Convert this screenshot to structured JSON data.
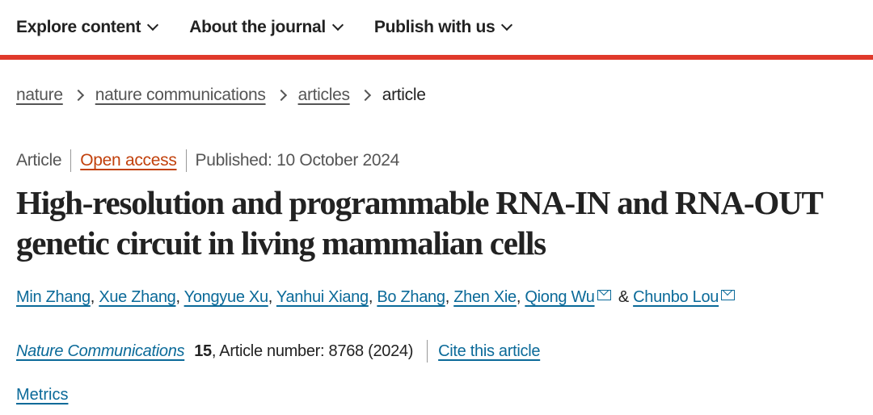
{
  "nav": {
    "items": [
      {
        "label": "Explore content"
      },
      {
        "label": "About the journal"
      },
      {
        "label": "Publish with us"
      }
    ]
  },
  "colors": {
    "accent_bar": "#e0392b",
    "link": "#0b6a99",
    "open_access": "#c2410c"
  },
  "breadcrumb": {
    "items": [
      "nature",
      "nature communications",
      "articles"
    ],
    "current": "article"
  },
  "meta": {
    "type": "Article",
    "access": "Open access",
    "published": "Published: 10 October 2024"
  },
  "title": "High-resolution and programmable RNA-IN and RNA-OUT genetic circuit in living mammalian cells",
  "authors": [
    "Min Zhang",
    "Xue Zhang",
    "Yongyue Xu",
    "Yanhui Xiang",
    "Bo Zhang",
    "Zhen Xie",
    "Qiong Wu",
    "Chunbo Lou"
  ],
  "authors_conjunction": "&",
  "citation": {
    "journal": "Nature Communications",
    "volume": "15",
    "rest": ", Article number: 8768 (2024)",
    "cite_label": "Cite this article"
  },
  "metrics_label": "Metrics"
}
